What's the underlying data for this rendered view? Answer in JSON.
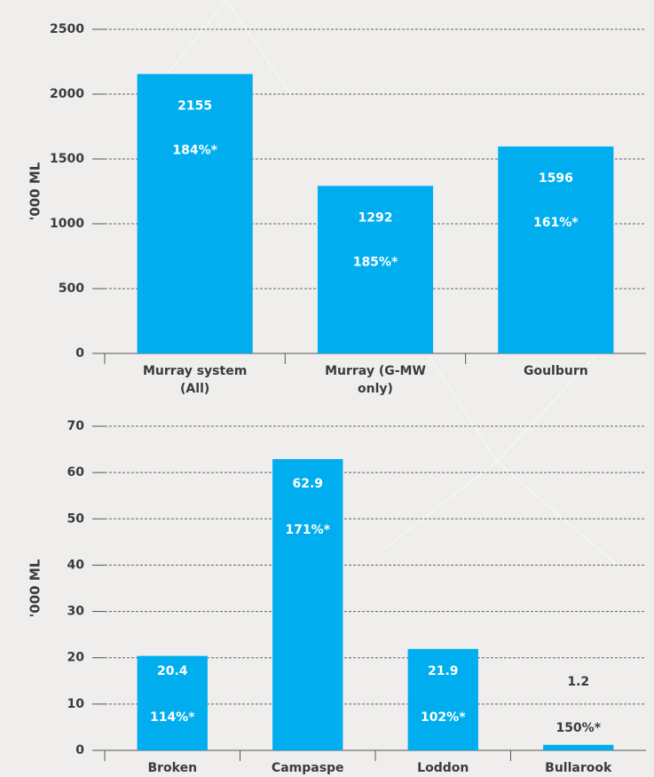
{
  "chart_data": [
    {
      "type": "bar",
      "y_label": "'000 ML",
      "categories": [
        "Murray system (All)",
        "Murray (G-MW only)",
        "Goulburn"
      ],
      "values": [
        2155,
        1292,
        1596
      ],
      "percent_labels": [
        "184%*",
        "185%*",
        "161%*"
      ],
      "color": "#00aeef",
      "ylim": [
        0,
        2500
      ],
      "yticks": [
        0,
        500,
        1000,
        1500,
        2000,
        2500
      ],
      "grid": true
    },
    {
      "type": "bar",
      "y_label": "'000 ML",
      "categories": [
        "Broken",
        "Campaspe",
        "Loddon",
        "Bullarook"
      ],
      "values": [
        20.4,
        62.9,
        21.9,
        1.2
      ],
      "percent_labels": [
        "114%*",
        "171%*",
        "102%*",
        "150%*"
      ],
      "color": "#00aeef",
      "ylim": [
        0,
        70
      ],
      "yticks": [
        0,
        10,
        20,
        30,
        40,
        50,
        60,
        70
      ],
      "grid": true
    }
  ]
}
